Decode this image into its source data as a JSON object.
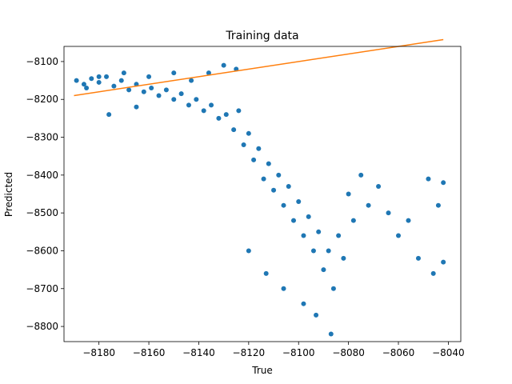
{
  "chart_data": {
    "type": "scatter",
    "title": "Training data",
    "xlabel": "True",
    "ylabel": "Predicted",
    "xlim": [
      -8194,
      -8035
    ],
    "ylim": [
      -8840,
      -8060
    ],
    "xticks": [
      -8180,
      -8160,
      -8140,
      -8120,
      -8100,
      -8080,
      -8060,
      -8040
    ],
    "yticks": [
      -8100,
      -8200,
      -8300,
      -8400,
      -8500,
      -8600,
      -8700,
      -8800
    ],
    "xtick_labels": [
      "−8180",
      "−8160",
      "−8140",
      "−8120",
      "−8100",
      "−8080",
      "−8060",
      "−8040"
    ],
    "ytick_labels": [
      "−8100",
      "−8200",
      "−8300",
      "−8400",
      "−8500",
      "−8600",
      "−8700",
      "−8800"
    ],
    "grid": false,
    "legend": "none",
    "series": [
      {
        "kind": "scatter",
        "color": "#1f77b4",
        "points_sampled": [
          [
            -8189,
            -8150
          ],
          [
            -8186,
            -8160
          ],
          [
            -8183,
            -8145
          ],
          [
            -8180,
            -8155
          ],
          [
            -8177,
            -8140
          ],
          [
            -8174,
            -8165
          ],
          [
            -8171,
            -8150
          ],
          [
            -8168,
            -8175
          ],
          [
            -8165,
            -8160
          ],
          [
            -8162,
            -8180
          ],
          [
            -8159,
            -8170
          ],
          [
            -8156,
            -8190
          ],
          [
            -8153,
            -8175
          ],
          [
            -8150,
            -8200
          ],
          [
            -8147,
            -8185
          ],
          [
            -8144,
            -8215
          ],
          [
            -8141,
            -8200
          ],
          [
            -8138,
            -8230
          ],
          [
            -8135,
            -8215
          ],
          [
            -8132,
            -8250
          ],
          [
            -8129,
            -8240
          ],
          [
            -8126,
            -8280
          ],
          [
            -8124,
            -8230
          ],
          [
            -8122,
            -8320
          ],
          [
            -8120,
            -8290
          ],
          [
            -8118,
            -8360
          ],
          [
            -8116,
            -8330
          ],
          [
            -8114,
            -8410
          ],
          [
            -8112,
            -8370
          ],
          [
            -8110,
            -8440
          ],
          [
            -8108,
            -8400
          ],
          [
            -8106,
            -8480
          ],
          [
            -8104,
            -8430
          ],
          [
            -8102,
            -8520
          ],
          [
            -8100,
            -8470
          ],
          [
            -8098,
            -8560
          ],
          [
            -8096,
            -8510
          ],
          [
            -8094,
            -8600
          ],
          [
            -8092,
            -8550
          ],
          [
            -8090,
            -8650
          ],
          [
            -8088,
            -8600
          ],
          [
            -8086,
            -8700
          ],
          [
            -8084,
            -8560
          ],
          [
            -8082,
            -8620
          ],
          [
            -8080,
            -8450
          ],
          [
            -8078,
            -8520
          ],
          [
            -8075,
            -8400
          ],
          [
            -8072,
            -8480
          ],
          [
            -8068,
            -8430
          ],
          [
            -8064,
            -8500
          ],
          [
            -8060,
            -8560
          ],
          [
            -8056,
            -8520
          ],
          [
            -8052,
            -8620
          ],
          [
            -8048,
            -8410
          ],
          [
            -8046,
            -8660
          ],
          [
            -8044,
            -8480
          ],
          [
            -8042,
            -8420
          ],
          [
            -8042,
            -8630
          ],
          [
            -8087,
            -8820
          ],
          [
            -8093,
            -8770
          ],
          [
            -8098,
            -8740
          ],
          [
            -8106,
            -8700
          ],
          [
            -8113,
            -8660
          ],
          [
            -8120,
            -8600
          ],
          [
            -8125,
            -8120
          ],
          [
            -8130,
            -8110
          ],
          [
            -8136,
            -8130
          ],
          [
            -8143,
            -8150
          ],
          [
            -8150,
            -8130
          ],
          [
            -8160,
            -8140
          ],
          [
            -8170,
            -8130
          ],
          [
            -8180,
            -8140
          ],
          [
            -8185,
            -8170
          ],
          [
            -8176,
            -8240
          ],
          [
            -8165,
            -8220
          ]
        ]
      },
      {
        "kind": "line",
        "color": "#ff7f0e",
        "points": [
          [
            -8190,
            -8190
          ],
          [
            -8042,
            -8042
          ]
        ]
      }
    ]
  }
}
